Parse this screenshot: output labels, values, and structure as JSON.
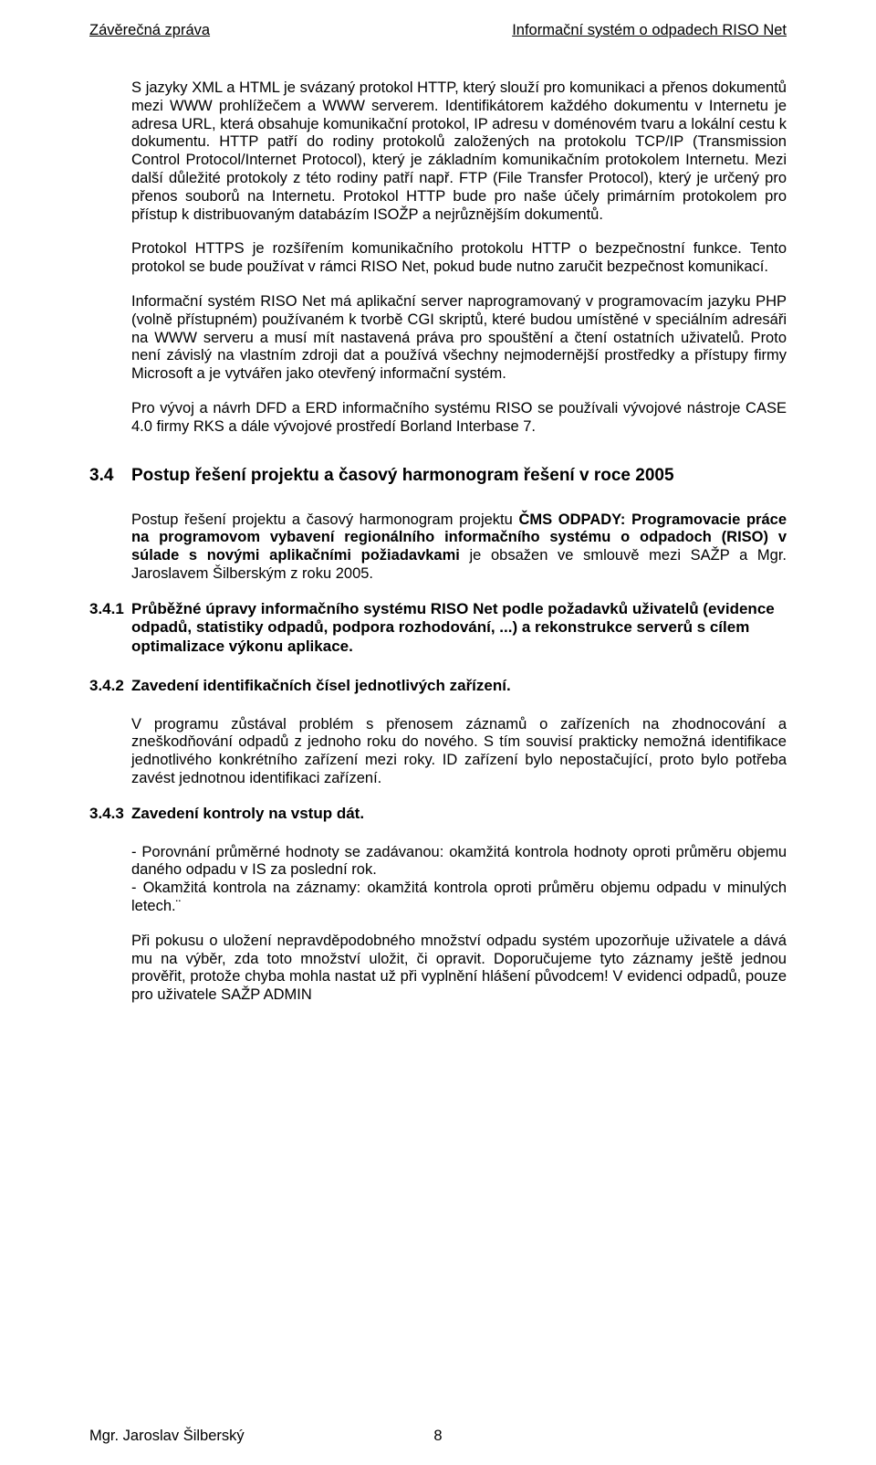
{
  "header": {
    "left": "Závěrečná zpráva",
    "right": "Informační systém o odpadech RISO Net"
  },
  "paras": {
    "p1": "S jazyky XML a  HTML je svázaný protokol HTTP, který slouží pro komunikaci a přenos dokumentů mezi WWW prohlížečem a WWW serverem. Identifikátorem každého dokumentu v Internetu je adresa URL, která obsahuje komunikační protokol, IP adresu v doménovém tvaru a lokální cestu k dokumentu. HTTP patří do rodiny protokolů založených na protokolu TCP/IP (Transmission Control Protocol/Internet Protocol), který je základním komunikačním protokolem Internetu. Mezi další důležité protokoly z této rodiny patří např. FTP (File Transfer Protocol), který je určený pro přenos souborů na Internetu. Protokol HTTP bude pro naše účely primárním protokolem pro přístup k distribuovaným databázím ISOŽP a nejrůznějším dokumentů.",
    "p2": "Protokol HTTPS je rozšířením komunikačního protokolu HTTP o bezpečnostní funkce. Tento protokol se bude používat v rámci RISO Net, pokud bude nutno zaručit bezpečnost komunikací.",
    "p3": "Informační systém RISO Net má aplikační server naprogramovaný v programovacím jazyku PHP (volně přístupném) používaném k tvorbě CGI skriptů, které budou umístěné v speciálním adresáři na WWW serveru a musí mít nastavená práva pro spouštění a čtení ostatních uživatelů. Proto není závislý na vlastním zdroji dat a používá všechny nejmodernější prostředky a přístupy firmy Microsoft a je vytvářen jako otevřený informační systém.",
    "p4": "Pro vývoj a návrh DFD a ERD informačního systému RISO se používali vývojové nástroje CASE 4.0 firmy RKS a dále vývojové prostředí Borland Interbase 7."
  },
  "section34": {
    "num": "3.4",
    "title": "Postup řešení projektu a časový harmonogram řešení v roce 2005",
    "intro_pre": "Postup řešení projektu a časový harmonogram projektu ",
    "intro_bold1": "ČMS ODPADY: Programovacie práce na programovom vybavení regionálního informačního systému o odpadoch (RISO) v súlade s novými aplikačními požiadavkami",
    "intro_post": " je obsažen ve smlouvě mezi SAŽP a Mgr. Jaroslavem Šilberským z roku 2005."
  },
  "sub341": {
    "num": "3.4.1",
    "title": "Průběžné úpravy informačního systému RISO Net podle požadavků uživatelů (evidence odpadů, statistiky odpadů, podpora rozhodování, ...) a rekonstrukce serverů s cílem optimalizace výkonu aplikace."
  },
  "sub342": {
    "num": "3.4.2",
    "title": "Zavedení identifikačních čísel jednotlivých zařízení.",
    "body": "V programu zůstával problém s přenosem záznamů o zařízeních na zhodnocování a zneškodňování odpadů z jednoho roku do nového. S tím souvisí prakticky nemožná identifikace jednotlivého konkrétního zařízení mezi roky. ID zařízení bylo nepostačující, proto bylo potřeba zavést jednotnou identifikaci zařízení."
  },
  "sub343": {
    "num": "3.4.3",
    "title": "Zavedení kontroly na vstup dát.",
    "bullets": "-  Porovnání průměrné hodnoty se zadávanou: okamžitá kontrola hodnoty oproti průměru objemu daného odpadu v IS za poslední rok.\n-  Okamžitá kontrola na záznamy: okamžitá kontrola oproti průměru objemu odpadu v minulých letech.¨",
    "body2": "Při pokusu o uložení nepravděpodobného množství odpadu systém upozorňuje uživatele a dává mu na výběr, zda toto množství uložit, či opravit. Doporučujeme tyto záznamy ještě jednou prověřit, protože chyba mohla nastat už při vyplnění hlášení původcem! V evidenci odpadů, pouze pro uživatele SAŽP ADMIN"
  },
  "footer": {
    "author": "Mgr. Jaroslav Šilberský",
    "page": "8"
  }
}
